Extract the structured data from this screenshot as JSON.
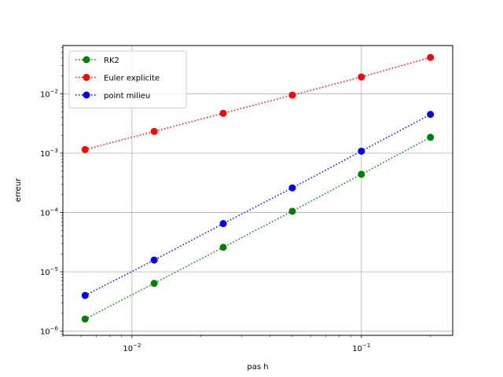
{
  "chart_data": {
    "type": "line",
    "xlabel": "pas h",
    "ylabel": "erreur",
    "x_scale": "log",
    "y_scale": "log",
    "xlim": [
      0.005,
      0.25
    ],
    "ylim": [
      8.5e-07,
      0.065
    ],
    "grid": true,
    "legend_position": "upper-left",
    "x_ticks": [
      {
        "value": 0.01,
        "mantissa": "10",
        "exponent": "−2"
      },
      {
        "value": 0.1,
        "mantissa": "10",
        "exponent": "−1"
      }
    ],
    "y_ticks": [
      {
        "value": 1e-06,
        "mantissa": "10",
        "exponent": "−6"
      },
      {
        "value": 1e-05,
        "mantissa": "10",
        "exponent": "−5"
      },
      {
        "value": 0.0001,
        "mantissa": "10",
        "exponent": "−4"
      },
      {
        "value": 0.001,
        "mantissa": "10",
        "exponent": "−3"
      },
      {
        "value": 0.01,
        "mantissa": "10",
        "exponent": "−2"
      }
    ],
    "x": [
      0.00625,
      0.0125,
      0.025,
      0.05,
      0.1,
      0.2
    ],
    "series": [
      {
        "name": " RK2",
        "color": "#008000",
        "line_style": "dotted",
        "marker": "circle",
        "values": [
          1.6e-06,
          6.4e-06,
          2.59e-05,
          0.000105,
          0.00044,
          0.00185
        ]
      },
      {
        "name": "Euler explicite",
        "color": "#ff0000",
        "line_style": "dotted",
        "marker": "circle",
        "values": [
          0.00115,
          0.00232,
          0.0047,
          0.0095,
          0.0192,
          0.041
        ]
      },
      {
        "name": "point milieu",
        "color": "#0000ff",
        "line_style": "dotted",
        "marker": "circle",
        "values": [
          4e-06,
          1.58e-05,
          6.5e-05,
          0.00026,
          0.00108,
          0.0045
        ]
      }
    ]
  }
}
